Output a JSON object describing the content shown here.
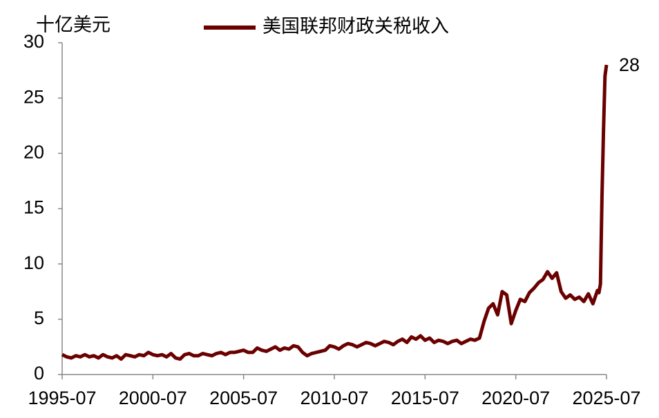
{
  "chart_data": {
    "type": "line",
    "y_label": "十亿美元",
    "x": [
      "1995-07",
      "1995-10",
      "1996-01",
      "1996-04",
      "1996-07",
      "1996-10",
      "1997-01",
      "1997-04",
      "1997-07",
      "1997-10",
      "1998-01",
      "1998-04",
      "1998-07",
      "1998-10",
      "1999-01",
      "1999-04",
      "1999-07",
      "1999-10",
      "2000-01",
      "2000-04",
      "2000-07",
      "2000-10",
      "2001-01",
      "2001-04",
      "2001-07",
      "2001-10",
      "2002-01",
      "2002-04",
      "2002-07",
      "2002-10",
      "2003-01",
      "2003-04",
      "2003-07",
      "2003-10",
      "2004-01",
      "2004-04",
      "2004-07",
      "2004-10",
      "2005-01",
      "2005-04",
      "2005-07",
      "2005-10",
      "2006-01",
      "2006-04",
      "2006-07",
      "2006-10",
      "2007-01",
      "2007-04",
      "2007-07",
      "2007-10",
      "2008-01",
      "2008-04",
      "2008-07",
      "2008-10",
      "2009-01",
      "2009-04",
      "2009-07",
      "2009-10",
      "2010-01",
      "2010-04",
      "2010-07",
      "2010-10",
      "2011-01",
      "2011-04",
      "2011-07",
      "2011-10",
      "2012-01",
      "2012-04",
      "2012-07",
      "2012-10",
      "2013-01",
      "2013-04",
      "2013-07",
      "2013-10",
      "2014-01",
      "2014-04",
      "2014-07",
      "2014-10",
      "2015-01",
      "2015-04",
      "2015-07",
      "2015-10",
      "2016-01",
      "2016-04",
      "2016-07",
      "2016-10",
      "2017-01",
      "2017-04",
      "2017-07",
      "2017-10",
      "2018-01",
      "2018-04",
      "2018-07",
      "2018-10",
      "2019-01",
      "2019-04",
      "2019-07",
      "2019-10",
      "2020-01",
      "2020-04",
      "2020-07",
      "2020-10",
      "2021-01",
      "2021-04",
      "2021-07",
      "2021-10",
      "2022-01",
      "2022-04",
      "2022-07",
      "2022-10",
      "2023-01",
      "2023-04",
      "2023-07",
      "2023-10",
      "2024-01",
      "2024-04",
      "2024-07",
      "2024-10",
      "2025-01",
      "2025-02",
      "2025-03",
      "2025-04",
      "2025-05",
      "2025-06",
      "2025-07"
    ],
    "series": [
      {
        "name": "美国联邦财政关税收入",
        "color": "#6b0000",
        "values": [
          1.8,
          1.6,
          1.5,
          1.7,
          1.6,
          1.8,
          1.6,
          1.7,
          1.5,
          1.8,
          1.6,
          1.5,
          1.7,
          1.4,
          1.8,
          1.7,
          1.6,
          1.8,
          1.7,
          2.0,
          1.8,
          1.7,
          1.8,
          1.6,
          1.9,
          1.5,
          1.4,
          1.8,
          1.9,
          1.7,
          1.7,
          1.9,
          1.8,
          1.7,
          1.9,
          2.0,
          1.8,
          2.0,
          2.0,
          2.1,
          2.2,
          2.0,
          2.0,
          2.4,
          2.2,
          2.1,
          2.3,
          2.5,
          2.2,
          2.4,
          2.3,
          2.6,
          2.5,
          2.0,
          1.7,
          1.9,
          2.0,
          2.1,
          2.2,
          2.6,
          2.5,
          2.3,
          2.6,
          2.8,
          2.7,
          2.5,
          2.7,
          2.9,
          2.8,
          2.6,
          2.8,
          3.0,
          2.9,
          2.7,
          3.0,
          3.2,
          2.9,
          3.4,
          3.2,
          3.5,
          3.1,
          3.3,
          2.9,
          3.1,
          3.0,
          2.8,
          3.0,
          3.1,
          2.8,
          3.0,
          3.2,
          3.1,
          3.3,
          4.8,
          6.0,
          6.4,
          5.4,
          7.5,
          7.2,
          4.6,
          5.8,
          6.8,
          6.6,
          7.4,
          7.8,
          8.3,
          8.6,
          9.3,
          8.7,
          9.2,
          7.5,
          6.9,
          7.2,
          6.8,
          7.0,
          6.6,
          7.3,
          6.4,
          7.6,
          7.4,
          8.2,
          16,
          22,
          27,
          28
        ]
      }
    ],
    "xlim": [
      "1995-07",
      "2025-07"
    ],
    "xticks": [
      "1995-07",
      "2000-07",
      "2005-07",
      "2010-07",
      "2015-07",
      "2020-07",
      "2025-07"
    ],
    "ylim": [
      0,
      30
    ],
    "yticks": [
      0,
      5,
      10,
      15,
      20,
      25,
      30
    ],
    "grid": false,
    "legend": "top"
  }
}
